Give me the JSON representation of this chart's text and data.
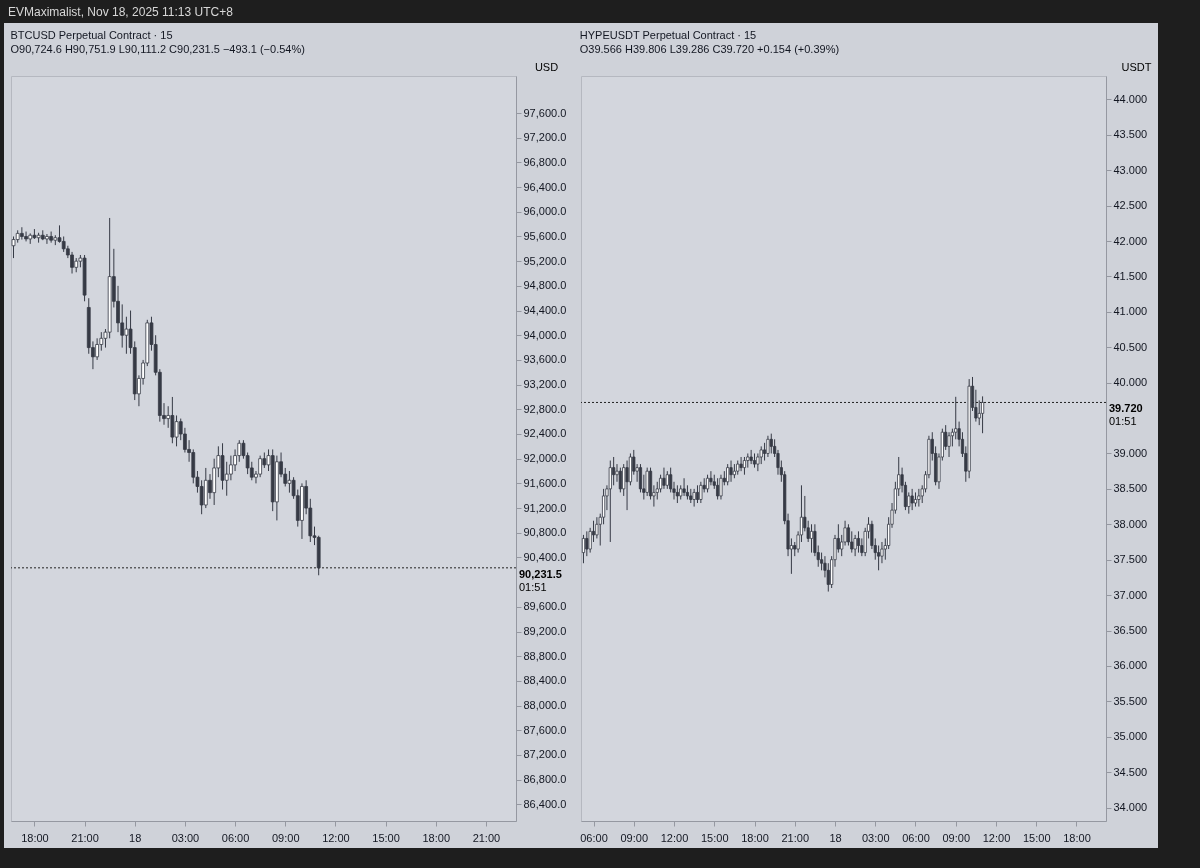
{
  "chart_data": [
    {
      "type": "candlestick",
      "title": "BTCUSD Perpetual Contract · 15",
      "subtitle": "O90,724.6 H90,751.9 L90,111.2 C90,231.5 −493.1 (−0.54%)",
      "ylabel": "USD",
      "annotations": [
        "EVMaximalist, Nov 18, 2025 11:13 UTC+8",
        "01:51"
      ],
      "ref_lines": [
        {
          "axis": "y",
          "value": 90231.5,
          "label": "90,231.5",
          "line_style": "dotted"
        }
      ],
      "xlim": [
        "2025-11-17T16:36",
        "2025-11-18T22:48"
      ],
      "xticks": [
        {
          "value": "2025-11-17T18:00",
          "label": "18:00"
        },
        {
          "value": "2025-11-17T21:00",
          "label": "21:00"
        },
        {
          "value": "2025-11-18T00:00",
          "label": "18"
        },
        {
          "value": "2025-11-18T03:00",
          "label": "03:00"
        },
        {
          "value": "2025-11-18T06:00",
          "label": "06:00"
        },
        {
          "value": "2025-11-18T09:00",
          "label": "09:00"
        },
        {
          "value": "2025-11-18T12:00",
          "label": "12:00"
        },
        {
          "value": "2025-11-18T15:00",
          "label": "15:00"
        },
        {
          "value": "2025-11-18T18:00",
          "label": "18:00"
        },
        {
          "value": "2025-11-18T21:00",
          "label": "21:00"
        }
      ],
      "ylim": [
        86130,
        98200
      ],
      "yticks": [
        {
          "value": 86400,
          "label": "86,400.0"
        },
        {
          "value": 86800,
          "label": "86,800.0"
        },
        {
          "value": 87200,
          "label": "87,200.0"
        },
        {
          "value": 87600,
          "label": "87,600.0"
        },
        {
          "value": 88000,
          "label": "88,000.0"
        },
        {
          "value": 88400,
          "label": "88,400.0"
        },
        {
          "value": 88800,
          "label": "88,800.0"
        },
        {
          "value": 89200,
          "label": "89,200.0"
        },
        {
          "value": 89600,
          "label": "89,600.0"
        },
        {
          "value": 90400,
          "label": "90,400.0"
        },
        {
          "value": 90800,
          "label": "90,800.0"
        },
        {
          "value": 91200,
          "label": "91,200.0"
        },
        {
          "value": 91600,
          "label": "91,600.0"
        },
        {
          "value": 92000,
          "label": "92,000.0"
        },
        {
          "value": 92400,
          "label": "92,400.0"
        },
        {
          "value": 92800,
          "label": "92,800.0"
        },
        {
          "value": 93200,
          "label": "93,200.0"
        },
        {
          "value": 93600,
          "label": "93,600.0"
        },
        {
          "value": 94000,
          "label": "94,000.0"
        },
        {
          "value": 94400,
          "label": "94,400.0"
        },
        {
          "value": 94800,
          "label": "94,800.0"
        },
        {
          "value": 95200,
          "label": "95,200.0"
        },
        {
          "value": 95600,
          "label": "95,600.0"
        },
        {
          "value": 96000,
          "label": "96,000.0"
        },
        {
          "value": 96400,
          "label": "96,400.0"
        },
        {
          "value": 96800,
          "label": "96,800.0"
        },
        {
          "value": 97200,
          "label": "97,200.0"
        },
        {
          "value": 97600,
          "label": "97,600.0"
        }
      ],
      "x": [
        "2025-11-17T16:45",
        "2025-11-17T17:00",
        "2025-11-17T17:15",
        "2025-11-17T17:30",
        "2025-11-17T17:45",
        "2025-11-17T18:00",
        "2025-11-17T18:15",
        "2025-11-17T18:30",
        "2025-11-17T18:45",
        "2025-11-17T19:00",
        "2025-11-17T19:15",
        "2025-11-17T19:30",
        "2025-11-17T19:45",
        "2025-11-17T20:00",
        "2025-11-17T20:15",
        "2025-11-17T20:30",
        "2025-11-17T20:45",
        "2025-11-17T21:00",
        "2025-11-17T21:15",
        "2025-11-17T21:30",
        "2025-11-17T21:45",
        "2025-11-17T22:00",
        "2025-11-17T22:15",
        "2025-11-17T22:30",
        "2025-11-17T22:45",
        "2025-11-17T23:00",
        "2025-11-17T23:15",
        "2025-11-17T23:30",
        "2025-11-17T23:45",
        "2025-11-18T00:00",
        "2025-11-18T00:15",
        "2025-11-18T00:30",
        "2025-11-18T00:45",
        "2025-11-18T01:00",
        "2025-11-18T01:15",
        "2025-11-18T01:30",
        "2025-11-18T01:45",
        "2025-11-18T02:00",
        "2025-11-18T02:15",
        "2025-11-18T02:30",
        "2025-11-18T02:45",
        "2025-11-18T03:00",
        "2025-11-18T03:15",
        "2025-11-18T03:30",
        "2025-11-18T03:45",
        "2025-11-18T04:00",
        "2025-11-18T04:15",
        "2025-11-18T04:30",
        "2025-11-18T04:45",
        "2025-11-18T05:00",
        "2025-11-18T05:15",
        "2025-11-18T05:30",
        "2025-11-18T05:45",
        "2025-11-18T06:00",
        "2025-11-18T06:15",
        "2025-11-18T06:30",
        "2025-11-18T06:45",
        "2025-11-18T07:00",
        "2025-11-18T07:15",
        "2025-11-18T07:30",
        "2025-11-18T07:45",
        "2025-11-18T08:00",
        "2025-11-18T08:15",
        "2025-11-18T08:30",
        "2025-11-18T08:45",
        "2025-11-18T09:00",
        "2025-11-18T09:15",
        "2025-11-18T09:30",
        "2025-11-18T09:45",
        "2025-11-18T10:00",
        "2025-11-18T10:15",
        "2025-11-18T10:30",
        "2025-11-18T10:45",
        "2025-11-18T11:00"
      ],
      "ohlc": [
        [
          95450,
          95600,
          95250,
          95550
        ],
        [
          95550,
          95700,
          95500,
          95650
        ],
        [
          95650,
          95750,
          95550,
          95600
        ],
        [
          95600,
          95680,
          95520,
          95560
        ],
        [
          95560,
          95650,
          95480,
          95620
        ],
        [
          95620,
          95720,
          95560,
          95580
        ],
        [
          95580,
          95660,
          95500,
          95620
        ],
        [
          95620,
          95700,
          95540,
          95560
        ],
        [
          95560,
          95640,
          95480,
          95600
        ],
        [
          95600,
          95680,
          95500,
          95540
        ],
        [
          95540,
          95620,
          95460,
          95580
        ],
        [
          95580,
          95780,
          95500,
          95520
        ],
        [
          95520,
          95600,
          95350,
          95400
        ],
        [
          95400,
          95450,
          95250,
          95300
        ],
        [
          95300,
          95350,
          95000,
          95100
        ],
        [
          95100,
          95250,
          95020,
          95200
        ],
        [
          95200,
          95300,
          95100,
          95250
        ],
        [
          95250,
          95300,
          94550,
          94650
        ],
        [
          94450,
          94600,
          93700,
          93800
        ],
        [
          93800,
          93900,
          93450,
          93650
        ],
        [
          93650,
          93950,
          93600,
          93850
        ],
        [
          93850,
          94050,
          93750,
          93950
        ],
        [
          93950,
          94100,
          93800,
          94050
        ],
        [
          94050,
          95900,
          93950,
          94950
        ],
        [
          94950,
          95400,
          94450,
          94550
        ],
        [
          94550,
          94800,
          94050,
          94200
        ],
        [
          94200,
          94500,
          93800,
          94000
        ],
        [
          94000,
          94300,
          93700,
          94100
        ],
        [
          94100,
          94400,
          93700,
          93800
        ],
        [
          93800,
          93900,
          92950,
          93050
        ],
        [
          93050,
          93350,
          92850,
          93300
        ],
        [
          93300,
          93600,
          93200,
          93550
        ],
        [
          93550,
          94250,
          93500,
          94200
        ],
        [
          94200,
          94300,
          93750,
          93850
        ],
        [
          93850,
          94000,
          93350,
          93400
        ],
        [
          93400,
          93450,
          92600,
          92700
        ],
        [
          92700,
          92900,
          92550,
          92650
        ],
        [
          92650,
          92850,
          92500,
          92700
        ],
        [
          92700,
          93000,
          92250,
          92350
        ],
        [
          92350,
          92700,
          92200,
          92600
        ],
        [
          92600,
          92650,
          92300,
          92400
        ],
        [
          92400,
          92500,
          92100,
          92150
        ],
        [
          92150,
          92300,
          91950,
          92100
        ],
        [
          92100,
          92150,
          91600,
          91700
        ],
        [
          91700,
          91800,
          91450,
          91550
        ],
        [
          91550,
          91650,
          91100,
          91250
        ],
        [
          91250,
          91850,
          91200,
          91650
        ],
        [
          91650,
          91750,
          91350,
          91450
        ],
        [
          91450,
          92000,
          91250,
          91850
        ],
        [
          91850,
          92200,
          91700,
          92050
        ],
        [
          92050,
          92250,
          91500,
          91650
        ],
        [
          91650,
          91950,
          91400,
          91750
        ],
        [
          91750,
          92050,
          91650,
          91900
        ],
        [
          91900,
          92150,
          91800,
          92050
        ],
        [
          92050,
          92300,
          91950,
          92250
        ],
        [
          92250,
          92300,
          92000,
          92050
        ],
        [
          92050,
          92100,
          91750,
          91850
        ],
        [
          91850,
          91950,
          91650,
          91700
        ],
        [
          91700,
          91800,
          91600,
          91750
        ],
        [
          91750,
          92050,
          91700,
          92000
        ],
        [
          92000,
          92100,
          91850,
          91900
        ],
        [
          91900,
          92150,
          91800,
          92050
        ],
        [
          92050,
          92150,
          91150,
          91300
        ],
        [
          91300,
          92050,
          91000,
          91950
        ],
        [
          91950,
          92100,
          91700,
          91750
        ],
        [
          91750,
          91850,
          91550,
          91600
        ],
        [
          91600,
          91800,
          91450,
          91650
        ],
        [
          91650,
          91700,
          91350,
          91400
        ],
        [
          91400,
          91500,
          90900,
          91000
        ],
        [
          91000,
          91600,
          90700,
          91550
        ],
        [
          91550,
          91650,
          91100,
          91200
        ],
        [
          91200,
          91350,
          90650,
          90750
        ],
        [
          90750,
          90900,
          90600,
          90724.6
        ],
        [
          90724.6,
          90751.9,
          90111.2,
          90231.5
        ]
      ]
    },
    {
      "type": "candlestick",
      "title": "HYPEUSDT Perpetual Contract · 15",
      "subtitle": "O39.566 H39.806 L39.286 C39.720 +0.154 (+0.39%)",
      "ylabel": "USDT",
      "annotations": [
        "01:51"
      ],
      "ref_lines": [
        {
          "axis": "y",
          "value": 39.72,
          "label": "39.720",
          "line_style": "dotted"
        }
      ],
      "xlim": [
        "2025-11-17T05:04",
        "2025-11-18T20:12"
      ],
      "xticks": [
        {
          "value": "2025-11-17T06:00",
          "label": "06:00"
        },
        {
          "value": "2025-11-17T09:00",
          "label": "09:00"
        },
        {
          "value": "2025-11-17T12:00",
          "label": "12:00"
        },
        {
          "value": "2025-11-17T15:00",
          "label": "15:00"
        },
        {
          "value": "2025-11-17T18:00",
          "label": "18:00"
        },
        {
          "value": "2025-11-17T21:00",
          "label": "21:00"
        },
        {
          "value": "2025-11-18T00:00",
          "label": "18"
        },
        {
          "value": "2025-11-18T03:00",
          "label": "03:00"
        },
        {
          "value": "2025-11-18T06:00",
          "label": "06:00"
        },
        {
          "value": "2025-11-18T09:00",
          "label": "09:00"
        },
        {
          "value": "2025-11-18T12:00",
          "label": "12:00"
        },
        {
          "value": "2025-11-18T15:00",
          "label": "15:00"
        },
        {
          "value": "2025-11-18T18:00",
          "label": "18:00"
        }
      ],
      "ylim": [
        33.81,
        44.33
      ],
      "yticks": [
        {
          "value": 34,
          "label": "34.000"
        },
        {
          "value": 34.5,
          "label": "34.500"
        },
        {
          "value": 35,
          "label": "35.000"
        },
        {
          "value": 35.5,
          "label": "35.500"
        },
        {
          "value": 36,
          "label": "36.000"
        },
        {
          "value": 36.5,
          "label": "36.500"
        },
        {
          "value": 37,
          "label": "37.000"
        },
        {
          "value": 37.5,
          "label": "37.500"
        },
        {
          "value": 38,
          "label": "38.000"
        },
        {
          "value": 38.5,
          "label": "38.500"
        },
        {
          "value": 39,
          "label": "39.000"
        },
        {
          "value": 40,
          "label": "40.000"
        },
        {
          "value": 40.5,
          "label": "40.500"
        },
        {
          "value": 41,
          "label": "41.000"
        },
        {
          "value": 41.5,
          "label": "41.500"
        },
        {
          "value": 42,
          "label": "42.000"
        },
        {
          "value": 42.5,
          "label": "42.500"
        },
        {
          "value": 43,
          "label": "43.000"
        },
        {
          "value": 43.5,
          "label": "43.500"
        },
        {
          "value": 44,
          "label": "44.000"
        }
      ],
      "x": [
        "2025-11-17T05:15",
        "2025-11-17T05:30",
        "2025-11-17T05:45",
        "2025-11-17T06:00",
        "2025-11-17T06:15",
        "2025-11-17T06:30",
        "2025-11-17T06:45",
        "2025-11-17T07:00",
        "2025-11-17T07:15",
        "2025-11-17T07:30",
        "2025-11-17T07:45",
        "2025-11-17T08:00",
        "2025-11-17T08:15",
        "2025-11-17T08:30",
        "2025-11-17T08:45",
        "2025-11-17T09:00",
        "2025-11-17T09:15",
        "2025-11-17T09:30",
        "2025-11-17T09:45",
        "2025-11-17T10:00",
        "2025-11-17T10:15",
        "2025-11-17T10:30",
        "2025-11-17T10:45",
        "2025-11-17T11:00",
        "2025-11-17T11:15",
        "2025-11-17T11:30",
        "2025-11-17T11:45",
        "2025-11-17T12:00",
        "2025-11-17T12:15",
        "2025-11-17T12:30",
        "2025-11-17T12:45",
        "2025-11-17T13:00",
        "2025-11-17T13:15",
        "2025-11-17T13:30",
        "2025-11-17T13:45",
        "2025-11-17T14:00",
        "2025-11-17T14:15",
        "2025-11-17T14:30",
        "2025-11-17T14:45",
        "2025-11-17T15:00",
        "2025-11-17T15:15",
        "2025-11-17T15:30",
        "2025-11-17T15:45",
        "2025-11-17T16:00",
        "2025-11-17T16:15",
        "2025-11-17T16:30",
        "2025-11-17T16:45",
        "2025-11-17T17:00",
        "2025-11-17T17:15",
        "2025-11-17T17:30",
        "2025-11-17T17:45",
        "2025-11-17T18:00",
        "2025-11-17T18:15",
        "2025-11-17T18:30",
        "2025-11-17T18:45",
        "2025-11-17T19:00",
        "2025-11-17T19:15",
        "2025-11-17T19:30",
        "2025-11-17T19:45",
        "2025-11-17T20:00",
        "2025-11-17T20:15",
        "2025-11-17T20:30",
        "2025-11-17T20:45",
        "2025-11-17T21:00",
        "2025-11-17T21:15",
        "2025-11-17T21:30",
        "2025-11-17T21:45",
        "2025-11-17T22:00",
        "2025-11-17T22:15",
        "2025-11-17T22:30",
        "2025-11-17T22:45",
        "2025-11-17T23:00",
        "2025-11-17T23:15",
        "2025-11-17T23:30",
        "2025-11-17T23:45",
        "2025-11-18T00:00",
        "2025-11-18T00:15",
        "2025-11-18T00:30",
        "2025-11-18T00:45",
        "2025-11-18T01:00",
        "2025-11-18T01:15",
        "2025-11-18T01:30",
        "2025-11-18T01:45",
        "2025-11-18T02:00",
        "2025-11-18T02:15",
        "2025-11-18T02:30",
        "2025-11-18T02:45",
        "2025-11-18T03:00",
        "2025-11-18T03:15",
        "2025-11-18T03:30",
        "2025-11-18T03:45",
        "2025-11-18T04:00",
        "2025-11-18T04:15",
        "2025-11-18T04:30",
        "2025-11-18T04:45",
        "2025-11-18T05:00",
        "2025-11-18T05:15",
        "2025-11-18T05:30",
        "2025-11-18T05:45",
        "2025-11-18T06:00",
        "2025-11-18T06:15",
        "2025-11-18T06:30",
        "2025-11-18T06:45",
        "2025-11-18T07:00",
        "2025-11-18T07:15",
        "2025-11-18T07:30",
        "2025-11-18T07:45",
        "2025-11-18T08:00",
        "2025-11-18T08:15",
        "2025-11-18T08:30",
        "2025-11-18T08:45",
        "2025-11-18T09:00",
        "2025-11-18T09:15",
        "2025-11-18T09:30",
        "2025-11-18T09:45",
        "2025-11-18T10:00",
        "2025-11-18T10:15",
        "2025-11-18T10:30",
        "2025-11-18T10:45",
        "2025-11-18T11:00"
      ],
      "ohlc": [
        [
          37.6,
          37.85,
          37.45,
          37.8
        ],
        [
          37.8,
          37.9,
          37.55,
          37.65
        ],
        [
          37.65,
          37.95,
          37.6,
          37.9
        ],
        [
          37.9,
          38.05,
          37.75,
          37.85
        ],
        [
          37.85,
          38.1,
          37.8,
          38.0
        ],
        [
          38.0,
          38.15,
          37.7,
          38.1
        ],
        [
          38.1,
          38.5,
          38.0,
          38.4
        ],
        [
          38.4,
          38.55,
          38.2,
          38.5
        ],
        [
          38.5,
          38.9,
          37.75,
          38.8
        ],
        [
          38.8,
          38.95,
          38.55,
          38.7
        ],
        [
          38.7,
          38.85,
          38.6,
          38.75
        ],
        [
          38.75,
          38.8,
          38.45,
          38.5
        ],
        [
          38.5,
          38.85,
          38.4,
          38.8
        ],
        [
          38.8,
          38.9,
          38.2,
          38.6
        ],
        [
          38.6,
          39.0,
          38.55,
          38.95
        ],
        [
          38.95,
          39.05,
          38.7,
          38.75
        ],
        [
          38.75,
          38.85,
          38.6,
          38.8
        ],
        [
          38.8,
          38.85,
          38.45,
          38.5
        ],
        [
          38.5,
          38.7,
          38.35,
          38.45
        ],
        [
          38.45,
          38.8,
          38.4,
          38.75
        ],
        [
          38.75,
          38.8,
          38.35,
          38.4
        ],
        [
          38.4,
          38.55,
          38.25,
          38.45
        ],
        [
          38.45,
          38.6,
          38.35,
          38.5
        ],
        [
          38.5,
          38.7,
          38.45,
          38.65
        ],
        [
          38.65,
          38.8,
          38.5,
          38.55
        ],
        [
          38.55,
          38.75,
          38.5,
          38.7
        ],
        [
          38.7,
          38.8,
          38.45,
          38.5
        ],
        [
          38.5,
          38.6,
          38.35,
          38.45
        ],
        [
          38.45,
          38.55,
          38.3,
          38.4
        ],
        [
          38.4,
          38.55,
          38.35,
          38.5
        ],
        [
          38.5,
          38.65,
          38.4,
          38.45
        ],
        [
          38.45,
          38.55,
          38.35,
          38.4
        ],
        [
          38.4,
          38.5,
          38.3,
          38.35
        ],
        [
          38.35,
          38.5,
          38.25,
          38.45
        ],
        [
          38.45,
          38.55,
          38.3,
          38.35
        ],
        [
          38.35,
          38.6,
          38.3,
          38.55
        ],
        [
          38.55,
          38.65,
          38.45,
          38.5
        ],
        [
          38.5,
          38.7,
          38.45,
          38.65
        ],
        [
          38.65,
          38.75,
          38.55,
          38.6
        ],
        [
          38.6,
          38.7,
          38.5,
          38.55
        ],
        [
          38.55,
          38.65,
          38.35,
          38.4
        ],
        [
          38.4,
          38.7,
          38.35,
          38.65
        ],
        [
          38.65,
          38.75,
          38.55,
          38.6
        ],
        [
          38.6,
          38.85,
          38.55,
          38.8
        ],
        [
          38.8,
          38.9,
          38.6,
          38.7
        ],
        [
          38.7,
          38.85,
          38.65,
          38.75
        ],
        [
          38.75,
          38.9,
          38.7,
          38.85
        ],
        [
          38.85,
          38.95,
          38.75,
          38.8
        ],
        [
          38.8,
          38.95,
          38.7,
          38.9
        ],
        [
          38.9,
          39.0,
          38.8,
          38.95
        ],
        [
          38.95,
          39.05,
          38.85,
          38.9
        ],
        [
          38.9,
          39.0,
          38.8,
          38.85
        ],
        [
          38.85,
          39.0,
          38.75,
          38.95
        ],
        [
          38.95,
          39.1,
          38.85,
          39.05
        ],
        [
          39.05,
          39.15,
          38.9,
          39.0
        ],
        [
          39.0,
          39.25,
          38.95,
          39.2
        ],
        [
          39.2,
          39.28,
          39.0,
          39.1
        ],
        [
          39.1,
          39.2,
          38.95,
          39.0
        ],
        [
          39.0,
          39.05,
          38.7,
          38.8
        ],
        [
          38.8,
          38.9,
          38.6,
          38.7
        ],
        [
          38.7,
          38.75,
          38.0,
          38.05
        ],
        [
          38.05,
          38.15,
          37.55,
          37.65
        ],
        [
          37.65,
          37.8,
          37.3,
          37.7
        ],
        [
          37.7,
          37.75,
          37.55,
          37.65
        ],
        [
          37.65,
          37.9,
          37.6,
          37.85
        ],
        [
          37.85,
          38.55,
          37.75,
          38.1
        ],
        [
          38.1,
          38.4,
          37.9,
          37.95
        ],
        [
          37.95,
          38.05,
          37.75,
          37.8
        ],
        [
          37.8,
          38.0,
          37.6,
          37.9
        ],
        [
          37.9,
          38.0,
          37.55,
          37.6
        ],
        [
          37.6,
          37.7,
          37.4,
          37.5
        ],
        [
          37.5,
          37.6,
          37.35,
          37.45
        ],
        [
          37.45,
          37.55,
          37.25,
          37.35
        ],
        [
          37.35,
          37.45,
          37.05,
          37.15
        ],
        [
          37.15,
          37.55,
          37.1,
          37.5
        ],
        [
          37.5,
          37.85,
          37.4,
          37.8
        ],
        [
          37.8,
          38.0,
          37.6,
          37.65
        ],
        [
          37.65,
          37.85,
          37.55,
          37.75
        ],
        [
          37.75,
          38.05,
          37.7,
          37.95
        ],
        [
          37.95,
          38.0,
          37.7,
          37.75
        ],
        [
          37.75,
          37.9,
          37.6,
          37.65
        ],
        [
          37.65,
          37.85,
          37.55,
          37.8
        ],
        [
          37.8,
          37.9,
          37.6,
          37.7
        ],
        [
          37.7,
          37.8,
          37.55,
          37.6
        ],
        [
          37.6,
          37.95,
          37.55,
          37.9
        ],
        [
          37.9,
          38.1,
          37.8,
          38.0
        ],
        [
          38.0,
          38.05,
          37.65,
          37.7
        ],
        [
          37.7,
          37.8,
          37.5,
          37.6
        ],
        [
          37.6,
          37.7,
          37.35,
          37.55
        ],
        [
          37.55,
          37.75,
          37.45,
          37.65
        ],
        [
          37.65,
          37.8,
          37.5,
          37.7
        ],
        [
          37.7,
          38.1,
          37.65,
          38.0
        ],
        [
          38.0,
          38.3,
          37.95,
          38.2
        ],
        [
          38.2,
          38.6,
          38.15,
          38.5
        ],
        [
          38.5,
          38.95,
          38.4,
          38.7
        ],
        [
          38.7,
          38.8,
          38.45,
          38.55
        ],
        [
          38.55,
          38.6,
          38.2,
          38.25
        ],
        [
          38.25,
          38.45,
          38.15,
          38.4
        ],
        [
          38.4,
          38.5,
          38.2,
          38.3
        ],
        [
          38.3,
          38.45,
          38.25,
          38.35
        ],
        [
          38.35,
          38.5,
          38.25,
          38.4
        ],
        [
          38.4,
          38.55,
          38.3,
          38.5
        ],
        [
          38.5,
          38.75,
          38.45,
          38.7
        ],
        [
          38.7,
          39.25,
          38.65,
          39.2
        ],
        [
          39.2,
          39.3,
          38.9,
          39.0
        ],
        [
          39.0,
          39.1,
          38.55,
          38.6
        ],
        [
          38.6,
          39.0,
          38.5,
          38.95
        ],
        [
          38.95,
          39.35,
          38.9,
          39.3
        ],
        [
          39.3,
          39.4,
          39.05,
          39.1
        ],
        [
          39.1,
          39.3,
          38.95,
          39.25
        ],
        [
          39.25,
          39.35,
          39.1,
          39.3
        ],
        [
          39.3,
          39.8,
          39.2,
          39.35
        ],
        [
          39.35,
          39.45,
          39.1,
          39.2
        ],
        [
          39.2,
          39.3,
          38.95,
          39.0
        ],
        [
          39.0,
          39.1,
          38.6,
          38.75
        ],
        [
          38.75,
          40.05,
          38.65,
          39.95
        ],
        [
          39.95,
          40.08,
          39.6,
          39.65
        ],
        [
          39.65,
          39.9,
          39.45,
          39.5
        ],
        [
          39.5,
          39.75,
          39.4,
          39.566
        ],
        [
          39.566,
          39.806,
          39.286,
          39.72
        ]
      ]
    }
  ]
}
